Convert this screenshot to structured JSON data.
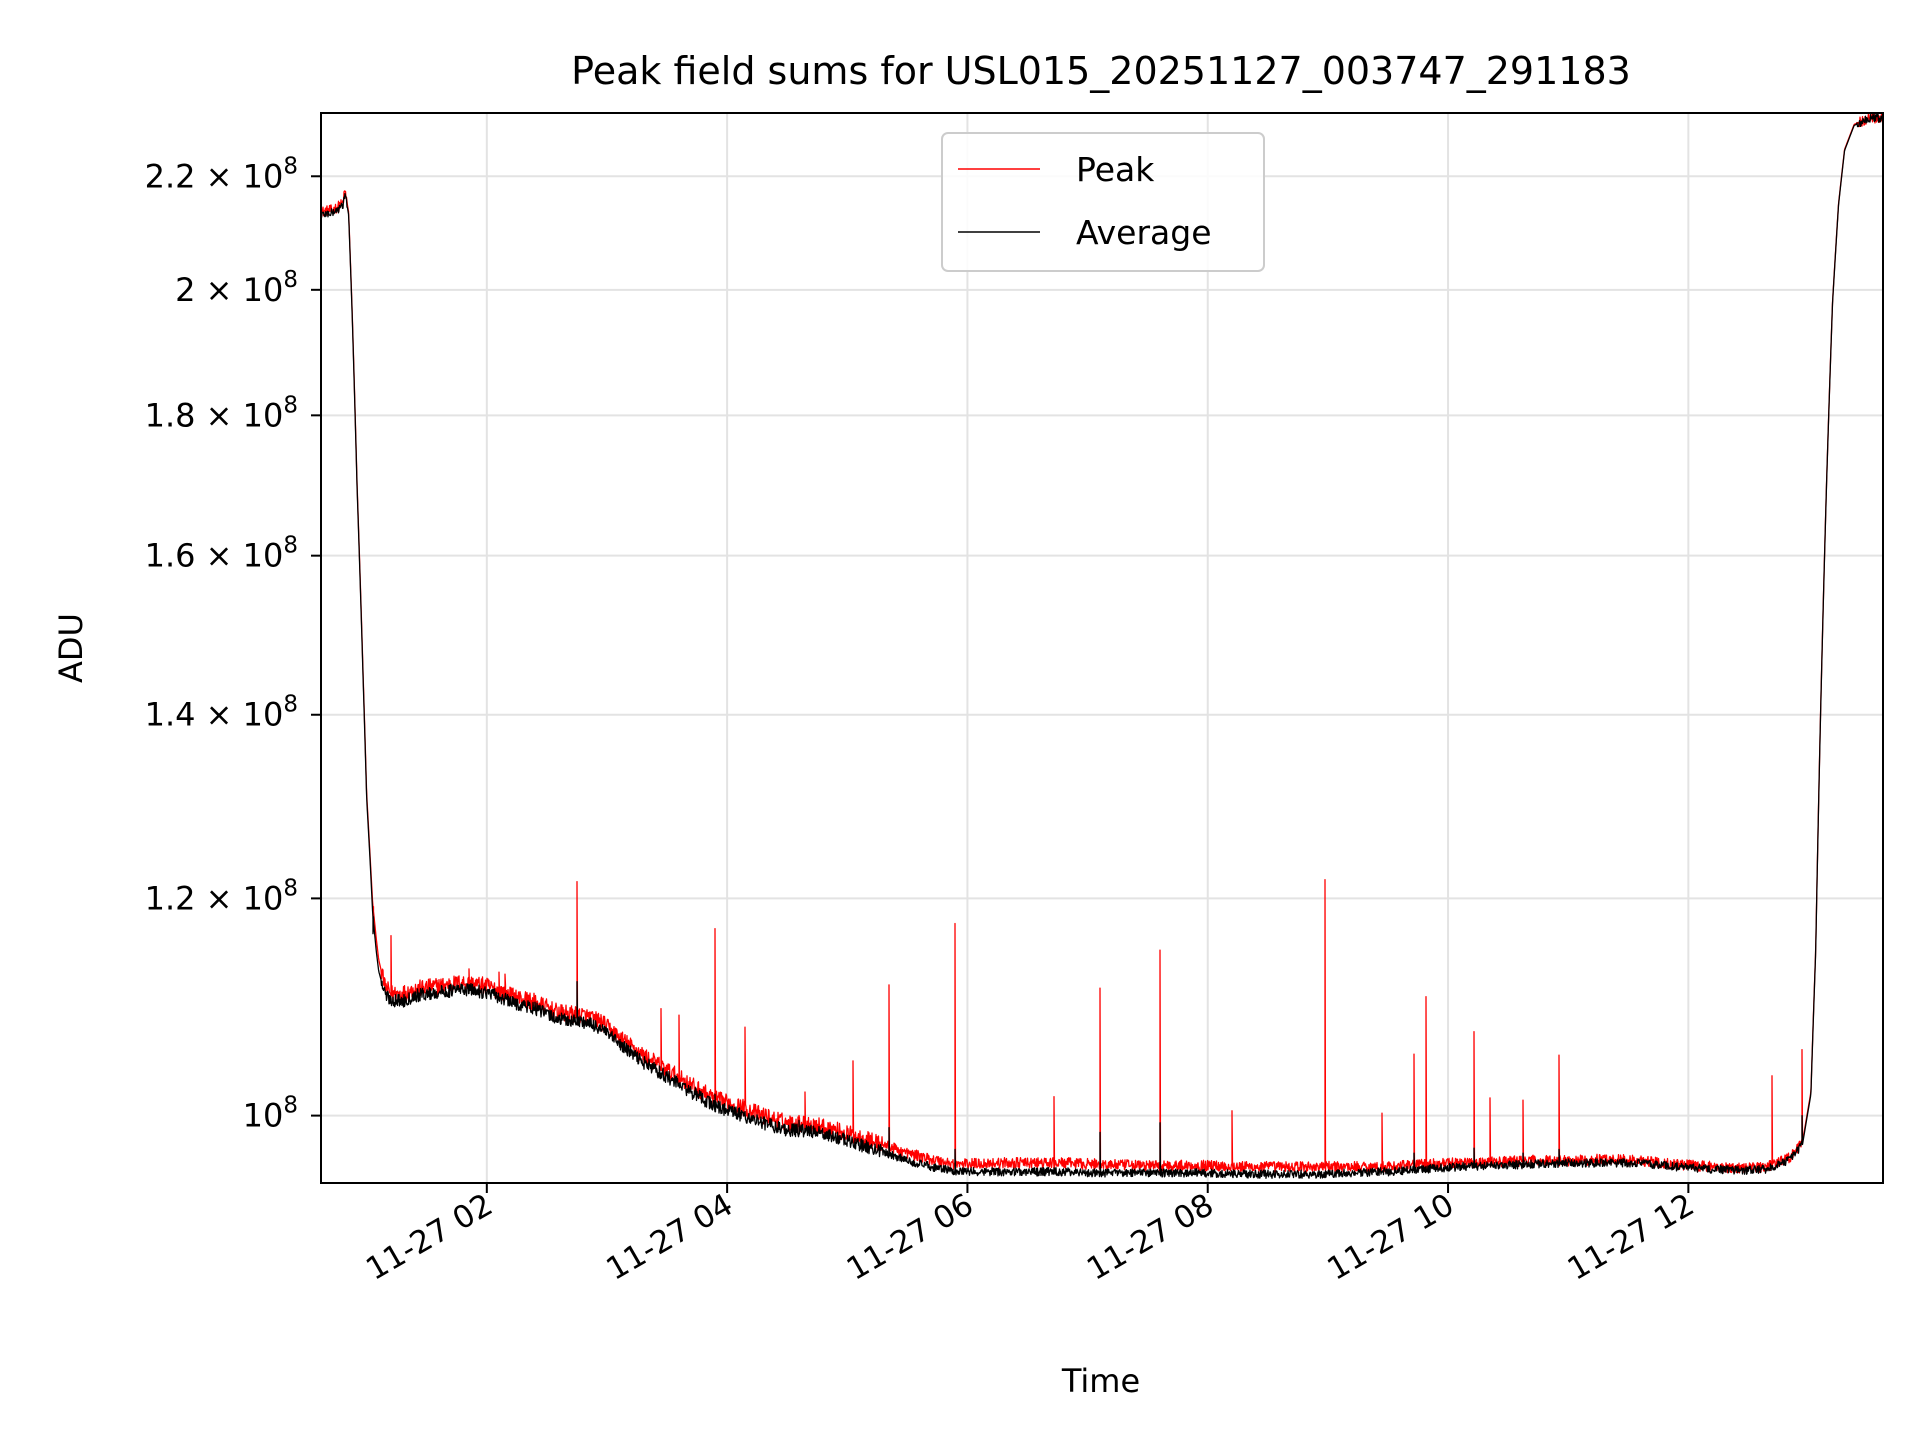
{
  "chart_data": {
    "type": "line",
    "title": "Peak field sums for USL015_20251127_003747_291183",
    "xlabel": "Time",
    "ylabel": "ADU",
    "yscale": "log",
    "grid": true,
    "legend_position": "upper center",
    "x_unit": "hours since 2025-11-27 00:00",
    "xlim": [
      0.62,
      13.62
    ],
    "ylim": [
      94500000.0,
      232000000.0
    ],
    "x_ticks": [
      {
        "value": 2,
        "label": "11-27 02"
      },
      {
        "value": 4,
        "label": "11-27 04"
      },
      {
        "value": 6,
        "label": "11-27 06"
      },
      {
        "value": 8,
        "label": "11-27 08"
      },
      {
        "value": 10,
        "label": "11-27 10"
      },
      {
        "value": 12,
        "label": "11-27 12"
      }
    ],
    "y_ticks": [
      {
        "value": 100000000,
        "mantissa": "",
        "exponent": "8"
      },
      {
        "value": 120000000,
        "mantissa": "1.2",
        "exponent": "8"
      },
      {
        "value": 140000000,
        "mantissa": "1.4",
        "exponent": "8"
      },
      {
        "value": 160000000,
        "mantissa": "1.6",
        "exponent": "8"
      },
      {
        "value": 180000000,
        "mantissa": "1.8",
        "exponent": "8"
      },
      {
        "value": 200000000,
        "mantissa": "2",
        "exponent": "8"
      },
      {
        "value": 220000000,
        "mantissa": "2.2",
        "exponent": "8"
      }
    ],
    "y_tick_base": "10",
    "y_tick_times": "×",
    "series": [
      {
        "name": "Peak",
        "color": "#ff0000",
        "x": [
          0.62,
          0.72,
          0.8,
          0.82,
          0.85,
          0.88,
          0.92,
          0.97,
          1.0,
          1.03,
          1.05,
          1.08,
          1.1,
          1.15,
          1.2,
          1.3,
          1.4,
          1.6,
          1.8,
          2.0,
          2.2,
          2.4,
          2.6,
          2.8,
          2.95,
          3.1,
          3.3,
          3.5,
          3.7,
          3.9,
          4.1,
          4.3,
          4.5,
          4.7,
          4.9,
          5.1,
          5.3,
          5.5,
          5.7,
          5.9,
          6.2,
          6.5,
          6.8,
          7.1,
          7.4,
          7.7,
          8.0,
          8.3,
          8.6,
          8.9,
          9.2,
          9.5,
          9.8,
          10.1,
          10.4,
          10.7,
          11.0,
          11.3,
          11.6,
          11.9,
          12.2,
          12.45,
          12.65,
          12.85,
          12.95,
          13.02,
          13.06,
          13.1,
          13.15,
          13.2,
          13.25,
          13.3,
          13.38,
          13.5,
          13.62
        ],
        "y": [
          213500000,
          213900000,
          215000000,
          217300000,
          213500000,
          196000000,
          170000000,
          145000000,
          131000000,
          124000000,
          119500000,
          116000000,
          114000000,
          111500000,
          110800000,
          110800000,
          111200000,
          111500000,
          111800000,
          111500000,
          110600000,
          110000000,
          109000000,
          108800000,
          108200000,
          106800000,
          105200000,
          103900000,
          102600000,
          101400000,
          100800000,
          100000000,
          99400000,
          99300000,
          98800000,
          98200000,
          97600000,
          96900000,
          96400000,
          96000000,
          96100000,
          96100000,
          96100000,
          96000000,
          95900000,
          95900000,
          95900000,
          95800000,
          95800000,
          95800000,
          95800000,
          95800000,
          96000000,
          96100000,
          96200000,
          96300000,
          96300000,
          96400000,
          96300000,
          96000000,
          95800000,
          95700000,
          95800000,
          96600000,
          97800000,
          102000000,
          115000000,
          140000000,
          170000000,
          198000000,
          215000000,
          225000000,
          229800000,
          231000000,
          231000000
        ],
        "spikes": [
          [
            1.05,
            118000000
          ],
          [
            1.2,
            116300000
          ],
          [
            1.85,
            113100000
          ],
          [
            2.1,
            112800000
          ],
          [
            2.15,
            112600000
          ],
          [
            2.75,
            121700000
          ],
          [
            3.45,
            109400000
          ],
          [
            3.6,
            108800000
          ],
          [
            3.9,
            117000000
          ],
          [
            4.15,
            107700000
          ],
          [
            4.65,
            102000000
          ],
          [
            5.05,
            104700000
          ],
          [
            5.35,
            111600000
          ],
          [
            5.9,
            117500000
          ],
          [
            6.72,
            101600000
          ],
          [
            7.1,
            111300000
          ],
          [
            7.6,
            114900000
          ],
          [
            8.2,
            100400000
          ],
          [
            8.98,
            121900000
          ],
          [
            9.45,
            100200000
          ],
          [
            9.72,
            105300000
          ],
          [
            9.82,
            110500000
          ],
          [
            10.22,
            107300000
          ],
          [
            10.35,
            101500000
          ],
          [
            10.62,
            101300000
          ],
          [
            10.92,
            105200000
          ],
          [
            12.7,
            103400000
          ],
          [
            12.95,
            105700000
          ]
        ]
      },
      {
        "name": "Average",
        "color": "#000000",
        "x": [
          0.62,
          0.72,
          0.8,
          0.82,
          0.85,
          0.88,
          0.92,
          0.97,
          1.0,
          1.03,
          1.05,
          1.08,
          1.1,
          1.15,
          1.2,
          1.3,
          1.4,
          1.6,
          1.8,
          2.0,
          2.2,
          2.4,
          2.6,
          2.8,
          2.95,
          3.1,
          3.3,
          3.5,
          3.7,
          3.9,
          4.1,
          4.3,
          4.5,
          4.7,
          4.9,
          5.1,
          5.3,
          5.5,
          5.7,
          5.9,
          6.2,
          6.5,
          6.8,
          7.1,
          7.4,
          7.7,
          8.0,
          8.3,
          8.6,
          8.9,
          9.2,
          9.5,
          9.8,
          10.1,
          10.4,
          10.7,
          11.0,
          11.3,
          11.6,
          11.9,
          12.2,
          12.45,
          12.65,
          12.85,
          12.95,
          13.02,
          13.06,
          13.1,
          13.15,
          13.2,
          13.25,
          13.3,
          13.38,
          13.5,
          13.62
        ],
        "y": [
          213000000,
          213400000,
          214500000,
          216900000,
          213000000,
          195500000,
          169500000,
          144500000,
          130500000,
          123500000,
          118500000,
          114800000,
          112900000,
          110800000,
          110200000,
          110100000,
          110600000,
          110900000,
          111200000,
          110900000,
          110000000,
          109400000,
          108400000,
          108200000,
          107600000,
          106200000,
          104600000,
          103300000,
          102000000,
          100800000,
          100100000,
          99400000,
          98800000,
          98700000,
          98200000,
          97600000,
          97000000,
          96300000,
          95800000,
          95400000,
          95400000,
          95400000,
          95400000,
          95300000,
          95300000,
          95300000,
          95300000,
          95200000,
          95200000,
          95200000,
          95300000,
          95400000,
          95600000,
          95800000,
          95900000,
          96000000,
          96100000,
          96100000,
          96100000,
          95800000,
          95600000,
          95500000,
          95600000,
          96400000,
          97600000,
          101800000,
          114800000,
          139800000,
          169800000,
          197800000,
          214800000,
          224800000,
          229600000,
          230900000,
          231000000
        ],
        "spikes": [
          [
            1.05,
            116500000
          ],
          [
            1.9,
            111300000
          ],
          [
            2.75,
            111900000
          ],
          [
            3.9,
            101800000
          ],
          [
            4.6,
            99600000
          ],
          [
            5.35,
            99000000
          ],
          [
            5.9,
            97200000
          ],
          [
            7.1,
            98600000
          ],
          [
            7.6,
            99400000
          ],
          [
            9.72,
            96900000
          ],
          [
            10.22,
            97300000
          ],
          [
            10.62,
            96900000
          ],
          [
            10.92,
            97200000
          ],
          [
            12.95,
            100000000
          ]
        ]
      }
    ]
  }
}
